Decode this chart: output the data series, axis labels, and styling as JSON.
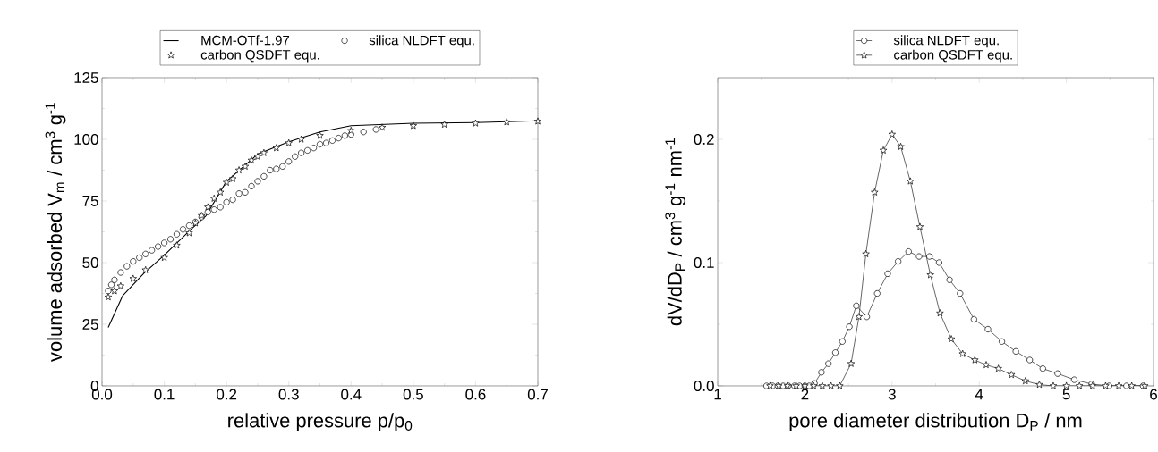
{
  "chart_data": [
    {
      "type": "line",
      "xlabel": "relative pressure p/p$_{0}$",
      "ylabel": "volume adsorbed V$_{m}$ / cm$^{3}$ g$^{-1}$",
      "xlim": [
        0,
        0.7
      ],
      "ylim": [
        0,
        125
      ],
      "xticks": [
        {
          "value": 0,
          "label": "0.0"
        },
        0.1,
        0.2,
        0.3,
        0.4,
        0.5,
        0.6,
        0.7
      ],
      "yticks": [
        0,
        25,
        50,
        75,
        100,
        125
      ],
      "legend": "top",
      "series": [
        {
          "name": "MCM-OTf-1.97",
          "color": "#000000",
          "marker": "none",
          "x": [
            0.01,
            0.033,
            0.067,
            0.1,
            0.145,
            0.167,
            0.2,
            0.25,
            0.3,
            0.35,
            0.4,
            0.5,
            0.6,
            0.7
          ],
          "values": [
            23.7,
            36.5,
            45.6,
            53,
            64,
            69,
            83,
            94,
            99,
            103,
            105.5,
            106.5,
            106.8,
            107.5
          ]
        },
        {
          "name": "silica NLDFT equ.",
          "type": "scatter",
          "color": "#000000",
          "marker": "circle",
          "x": [
            0.01,
            0.015,
            0.02,
            0.03,
            0.04,
            0.05,
            0.06,
            0.07,
            0.08,
            0.09,
            0.1,
            0.11,
            0.12,
            0.13,
            0.14,
            0.15,
            0.16,
            0.17,
            0.18,
            0.19,
            0.2,
            0.21,
            0.22,
            0.23,
            0.24,
            0.25,
            0.26,
            0.27,
            0.28,
            0.29,
            0.3,
            0.31,
            0.32,
            0.33,
            0.34,
            0.35,
            0.36,
            0.37,
            0.38,
            0.39,
            0.4,
            0.42,
            0.44
          ],
          "values": [
            38.5,
            41,
            43,
            46,
            48.5,
            50.5,
            52,
            53.5,
            55,
            56.5,
            58,
            59.5,
            61.5,
            63.5,
            65,
            66.5,
            68.5,
            70.5,
            71.5,
            72.5,
            74.5,
            75.5,
            78,
            78.5,
            81,
            83,
            85,
            87.5,
            88,
            89,
            91,
            93,
            94.5,
            95.5,
            96.5,
            98,
            98.5,
            99.5,
            100.5,
            101.5,
            102,
            103,
            104
          ]
        },
        {
          "name": "carbon QSDFT equ.",
          "type": "scatter",
          "color": "#000000",
          "marker": "star",
          "x": [
            0.01,
            0.02,
            0.03,
            0.05,
            0.07,
            0.1,
            0.12,
            0.14,
            0.15,
            0.16,
            0.17,
            0.18,
            0.19,
            0.2,
            0.21,
            0.22,
            0.23,
            0.24,
            0.25,
            0.26,
            0.28,
            0.3,
            0.32,
            0.35,
            0.4,
            0.45,
            0.5,
            0.55,
            0.6,
            0.65,
            0.7
          ],
          "values": [
            36,
            38.5,
            40.5,
            43.5,
            47,
            52,
            57,
            62,
            66,
            69,
            72.5,
            76,
            78.5,
            82.5,
            84,
            87.5,
            89,
            91.5,
            93,
            94.5,
            96.5,
            98.5,
            100,
            101.5,
            103.5,
            104.8,
            105.5,
            106,
            106.5,
            107,
            107.3
          ]
        }
      ]
    },
    {
      "type": "line",
      "xlabel": "pore diameter distribution D$_{P}$ / nm",
      "ylabel": "dV/dD$_{P}$ / cm$^{3}$ g$^{-1}$ nm$^{-1}$",
      "xlim": [
        1,
        6
      ],
      "ylim": [
        0,
        0.25
      ],
      "xticks": [
        1,
        2,
        3,
        4,
        5,
        6
      ],
      "yticks": [
        {
          "value": 0,
          "label": "0.0"
        },
        0.1,
        0.2
      ],
      "legend": "top",
      "series": [
        {
          "name": "silica NLDFT equ.",
          "color": "#000000",
          "marker": "circle",
          "x": [
            1.56,
            1.63,
            1.69,
            1.75,
            1.81,
            1.88,
            1.94,
            2.0,
            2.05,
            2.11,
            2.19,
            2.27,
            2.35,
            2.43,
            2.51,
            2.59,
            2.71,
            2.83,
            2.95,
            3.07,
            3.19,
            3.31,
            3.43,
            3.54,
            3.66,
            3.78,
            3.94,
            4.1,
            4.26,
            4.42,
            4.58,
            4.73,
            4.9,
            5.09,
            5.29,
            5.49,
            5.69,
            5.88
          ],
          "values": [
            0,
            0,
            0,
            0,
            0,
            0,
            0,
            0,
            0,
            0.002,
            0.011,
            0.018,
            0.027,
            0.036,
            0.048,
            0.065,
            0.056,
            0.075,
            0.091,
            0.101,
            0.109,
            0.105,
            0.105,
            0.1,
            0.086,
            0.075,
            0.054,
            0.046,
            0.036,
            0.028,
            0.021,
            0.014,
            0.01,
            0.005,
            0.0015,
            0,
            0,
            0
          ]
        },
        {
          "name": "carbon QSDFT equ.",
          "color": "#000000",
          "marker": "star",
          "x": [
            1.6,
            1.7,
            1.8,
            1.9,
            2.0,
            2.1,
            2.2,
            2.3,
            2.4,
            2.53,
            2.62,
            2.7,
            2.8,
            2.9,
            3.0,
            3.1,
            3.21,
            3.32,
            3.44,
            3.55,
            3.68,
            3.81,
            3.95,
            4.08,
            4.22,
            4.37,
            4.53,
            4.69,
            4.85,
            5.0,
            5.15,
            5.3,
            5.45,
            5.6,
            5.75,
            5.9
          ],
          "values": [
            0,
            0,
            0,
            0,
            0,
            0,
            0,
            0,
            0,
            0.018,
            0.056,
            0.107,
            0.157,
            0.191,
            0.204,
            0.194,
            0.166,
            0.129,
            0.09,
            0.059,
            0.038,
            0.026,
            0.021,
            0.017,
            0.014,
            0.009,
            0.004,
            0.001,
            0,
            0,
            0,
            0,
            0,
            0,
            0,
            0
          ]
        }
      ]
    }
  ]
}
